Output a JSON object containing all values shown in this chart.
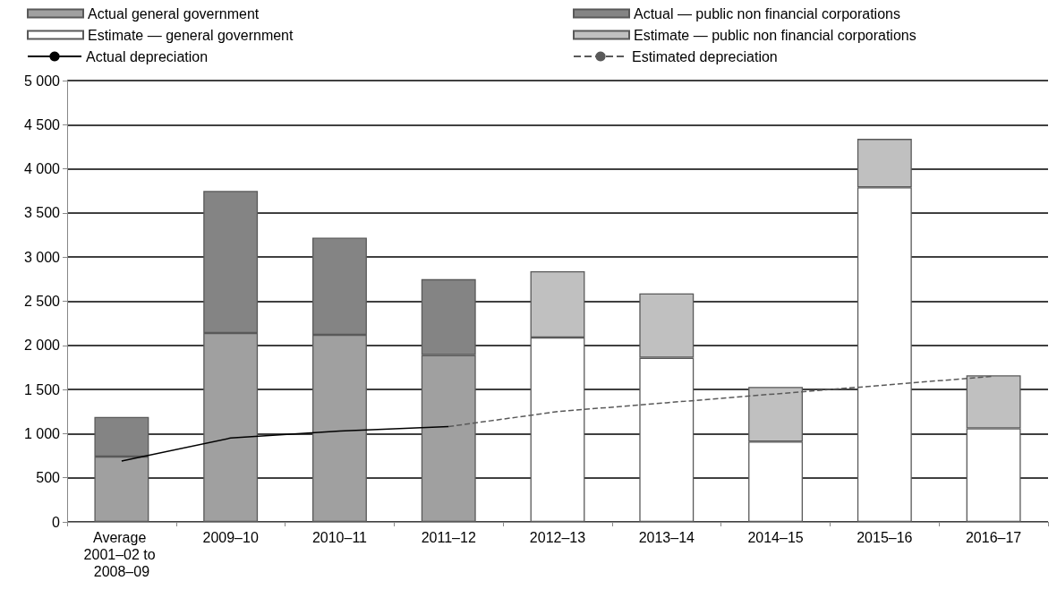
{
  "chart_data": {
    "type": "bar",
    "stacked": true,
    "categories": [
      "Average 2001–02 to 2008–09",
      "2009–10",
      "2010–11",
      "2011–12",
      "2012–13",
      "2013–14",
      "2014–15",
      "2015–16",
      "2016–17"
    ],
    "series": [
      {
        "name": "Actual general government",
        "color": "#a0a0a0",
        "values": [
          740,
          2140,
          2120,
          1890,
          null,
          null,
          null,
          null,
          null
        ]
      },
      {
        "name": "Actual — public non financial corporations",
        "color": "#848484",
        "values": [
          450,
          1610,
          1100,
          860,
          null,
          null,
          null,
          null,
          null
        ]
      },
      {
        "name": "Estimate — general government",
        "color": "#ffffff",
        "values": [
          null,
          null,
          null,
          null,
          2090,
          1860,
          910,
          3790,
          1060
        ]
      },
      {
        "name": "Estimate — public non financial corporations",
        "color": "#c0c0c0",
        "values": [
          null,
          null,
          null,
          null,
          750,
          730,
          620,
          550,
          600
        ]
      },
      {
        "name": "Actual depreciation",
        "type": "line",
        "color": "#000000",
        "line_style": "solid",
        "values": [
          690,
          950,
          1030,
          1080,
          null,
          null,
          null,
          null,
          null
        ]
      },
      {
        "name": "Estimated depreciation",
        "type": "line",
        "color": "#595959",
        "line_style": "dashed",
        "values": [
          null,
          null,
          null,
          1080,
          1250,
          1350,
          1450,
          1550,
          1650
        ]
      }
    ],
    "ylim": [
      0,
      5000
    ],
    "yticks": [
      0,
      {
        "value": 500,
        "label": "500"
      },
      {
        "value": 1000,
        "label": "1 000"
      },
      {
        "value": 1500,
        "label": "1 500"
      },
      {
        "value": 2000,
        "label": "2 000"
      },
      {
        "value": 2500,
        "label": "2 500"
      },
      {
        "value": 3000,
        "label": "3 000"
      },
      {
        "value": 3500,
        "label": "3 500"
      },
      {
        "value": 4000,
        "label": "4 000"
      },
      {
        "value": 4500,
        "label": "4 500"
      },
      {
        "value": 5000,
        "label": "5 000"
      }
    ],
    "grid": "y",
    "legend": "top",
    "marker": "none"
  }
}
